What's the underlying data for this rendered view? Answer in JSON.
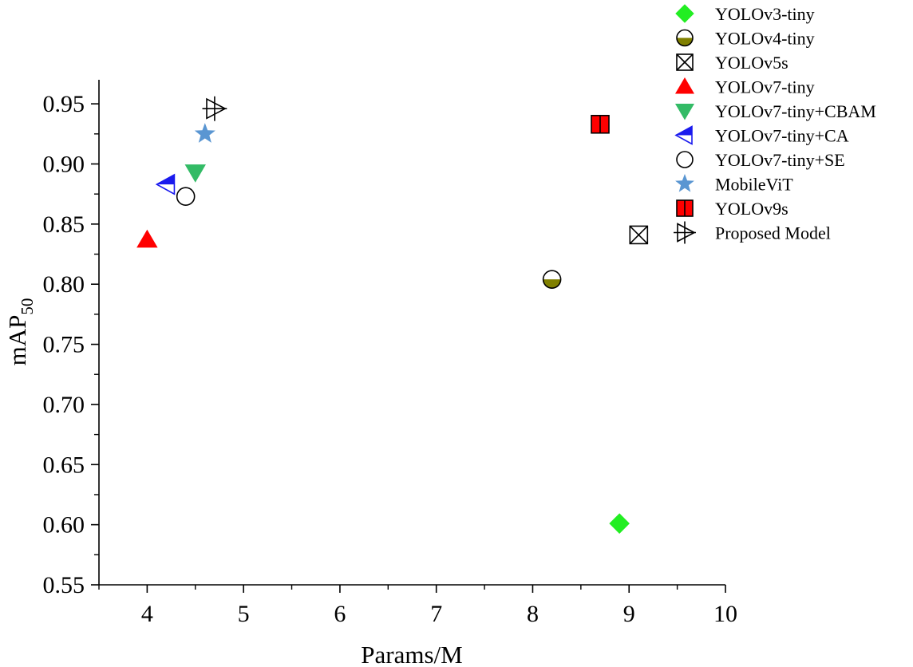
{
  "chart_data": {
    "type": "scatter",
    "title": "",
    "xlabel": "Params/M",
    "ylabel": "mAP",
    "ylabel_sub": "50",
    "xlim": [
      3.5,
      10
    ],
    "ylim": [
      0.55,
      0.97
    ],
    "xticks": [
      4,
      5,
      6,
      7,
      8,
      9,
      10
    ],
    "yticks": [
      0.55,
      0.6,
      0.65,
      0.7,
      0.75,
      0.8,
      0.85,
      0.9,
      0.95
    ],
    "xtick_labels": [
      "4",
      "5",
      "6",
      "7",
      "8",
      "9",
      "10"
    ],
    "ytick_labels": [
      "0.55",
      "0.60",
      "0.65",
      "0.70",
      "0.75",
      "0.80",
      "0.85",
      "0.90",
      "0.95"
    ],
    "grid": false,
    "legend_position": "top-right",
    "series": [
      {
        "name": "YOLOv3-tiny",
        "marker": "diamond",
        "color": "#22ee22",
        "x": 8.9,
        "y": 0.601
      },
      {
        "name": "YOLOv4-tiny",
        "marker": "half-circle",
        "color": "#808000",
        "x": 8.2,
        "y": 0.804
      },
      {
        "name": "YOLOv5s",
        "marker": "boxed-x",
        "color": "#000000",
        "x": 9.1,
        "y": 0.841
      },
      {
        "name": "YOLOv7-tiny",
        "marker": "triangle-up",
        "color": "#ff0000",
        "x": 4.0,
        "y": 0.837
      },
      {
        "name": "YOLOv7-tiny+CBAM",
        "marker": "triangle-down",
        "color": "#33bb66",
        "x": 4.5,
        "y": 0.893
      },
      {
        "name": "YOLOv7-tiny+CA",
        "marker": "triangle-left-half",
        "color": "#1a1aee",
        "x": 4.2,
        "y": 0.883
      },
      {
        "name": "YOLOv7-tiny+SE",
        "marker": "circle-open",
        "color": "#000000",
        "x": 4.4,
        "y": 0.873
      },
      {
        "name": "MobileViT",
        "marker": "star",
        "color": "#5a96d2",
        "x": 4.6,
        "y": 0.925
      },
      {
        "name": "YOLOv9s",
        "marker": "square-bar",
        "color": "#ff0000",
        "x": 8.7,
        "y": 0.933
      },
      {
        "name": "Proposed Model",
        "marker": "triangle-right-cross",
        "color": "#000000",
        "x": 4.7,
        "y": 0.946
      }
    ]
  }
}
